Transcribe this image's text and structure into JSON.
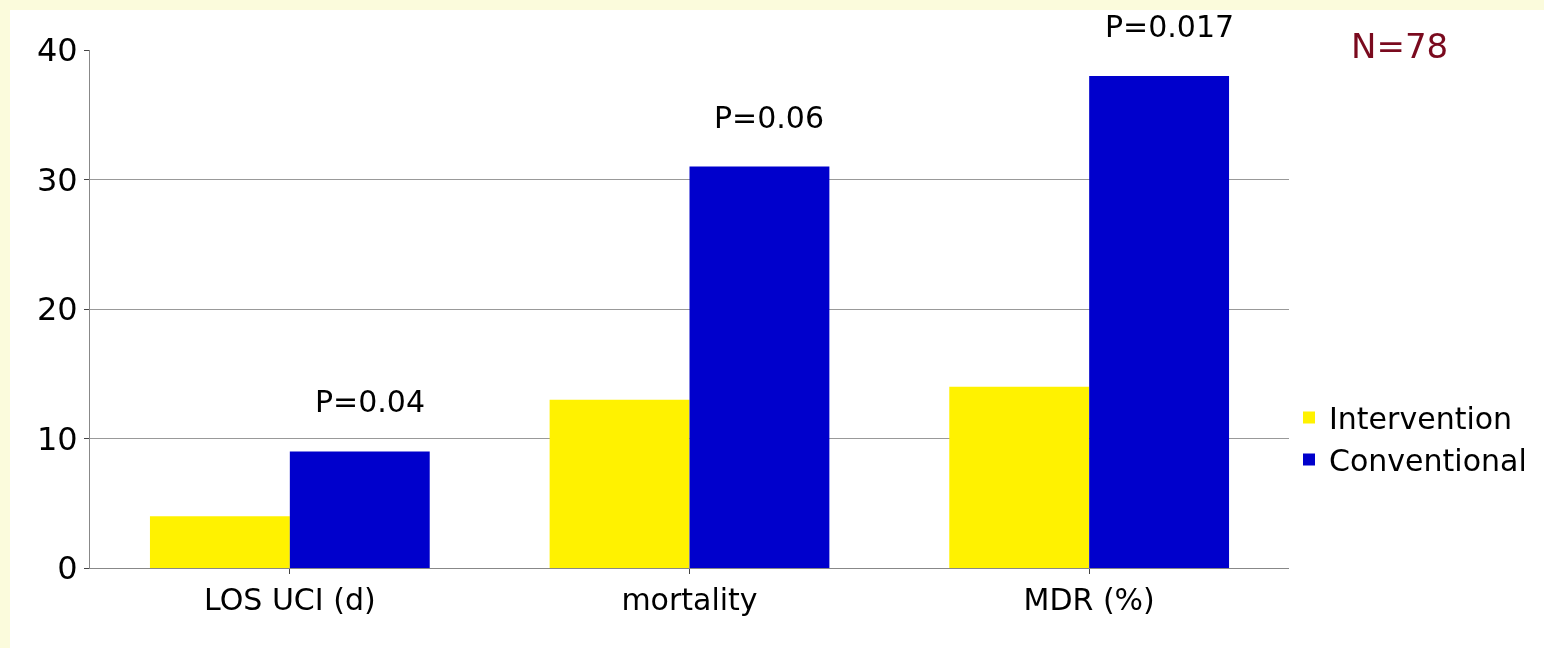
{
  "chart_data": {
    "type": "bar",
    "categories": [
      "LOS UCI (d)",
      "mortality",
      "MDR (%)"
    ],
    "series": [
      {
        "name": "Intervention",
        "color": "#fff200",
        "values": [
          4,
          13,
          14
        ]
      },
      {
        "name": "Conventional",
        "color": "#0000cc",
        "values": [
          9,
          31,
          38
        ]
      }
    ],
    "ylim": [
      0,
      40
    ],
    "yticks": [
      0,
      10,
      20,
      30,
      40
    ],
    "grid": "y",
    "legend": "right",
    "annotations": [
      {
        "text": "P=0.04",
        "x": "LOS UCI (d)",
        "y": 9
      },
      {
        "text": "P=0.06",
        "x": "mortality",
        "y": 31
      },
      {
        "text": "P=0.017",
        "x": "MDR (%)",
        "y": 38
      },
      "N=78"
    ]
  }
}
